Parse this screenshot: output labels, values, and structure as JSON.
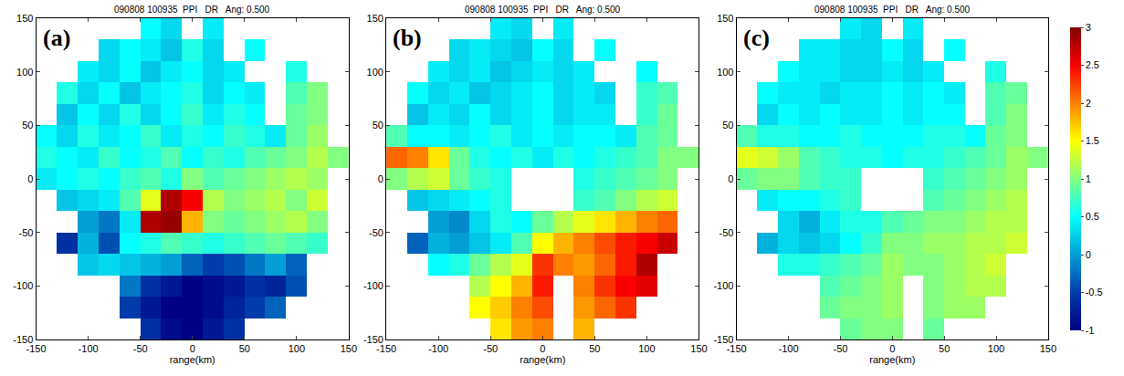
{
  "chart_data": [
    {
      "type": "heatmap",
      "panel_label": "(a)",
      "title": "090808 100935  PPI   DR   Ang: 0.500",
      "x_label": "range(km)",
      "color": "Jet",
      "x": [
        -140,
        -120,
        -100,
        -80,
        -60,
        -40,
        -20,
        0,
        20,
        40,
        60,
        80,
        100,
        120,
        140
      ],
      "y": [
        140,
        120,
        100,
        80,
        60,
        40,
        20,
        0,
        -20,
        -40,
        -60,
        -80,
        -100,
        -120,
        -140
      ],
      "z": [
        [
          null,
          null,
          null,
          null,
          null,
          0.5,
          0.3,
          null,
          0.4,
          null,
          null,
          null,
          null,
          null,
          null
        ],
        [
          null,
          null,
          null,
          0.3,
          0.5,
          0.4,
          0.2,
          0.6,
          0.3,
          null,
          0.5,
          null,
          null,
          null,
          null
        ],
        [
          null,
          null,
          0.4,
          0.3,
          0.5,
          0.2,
          0.4,
          0.5,
          0.3,
          0.4,
          null,
          null,
          0.6,
          null,
          null
        ],
        [
          null,
          0.6,
          0.3,
          0.5,
          0.2,
          0.4,
          0.5,
          0.6,
          0.3,
          0.5,
          0.4,
          null,
          0.8,
          1.0,
          null
        ],
        [
          null,
          0.2,
          0.5,
          0.3,
          0.6,
          0.3,
          0.5,
          0.7,
          0.4,
          0.6,
          0.5,
          null,
          0.9,
          1.0,
          null
        ],
        [
          0.5,
          0.3,
          0.6,
          0.4,
          0.5,
          0.7,
          0.4,
          0.6,
          0.5,
          0.7,
          0.6,
          0.4,
          0.9,
          1.1,
          null
        ],
        [
          0.6,
          0.5,
          0.4,
          0.7,
          0.5,
          0.6,
          0.8,
          0.5,
          0.7,
          0.6,
          0.8,
          0.9,
          1.0,
          1.2,
          1.0
        ],
        [
          0.4,
          0.5,
          0.6,
          0.5,
          0.7,
          0.8,
          0.6,
          1.0,
          0.8,
          0.9,
          1.0,
          1.1,
          1.2,
          1.1,
          null
        ],
        [
          null,
          0.2,
          0.3,
          0.4,
          0.8,
          1.4,
          2.8,
          2.5,
          1.2,
          1.0,
          1.1,
          1.2,
          1.0,
          1.3,
          null
        ],
        [
          null,
          null,
          0.0,
          -0.2,
          0.4,
          2.8,
          2.9,
          1.8,
          1.0,
          0.9,
          1.0,
          1.1,
          1.2,
          1.0,
          null
        ],
        [
          null,
          -0.6,
          0.1,
          -0.4,
          0.5,
          0.6,
          0.8,
          0.7,
          0.6,
          0.7,
          0.8,
          0.9,
          0.8,
          0.7,
          null
        ],
        [
          null,
          null,
          0.2,
          0.3,
          0.2,
          0.1,
          0.0,
          -0.3,
          -0.5,
          -0.4,
          -0.2,
          0.0,
          -0.3,
          null,
          null
        ],
        [
          null,
          null,
          null,
          null,
          -0.2,
          -0.6,
          -0.8,
          -1.0,
          -0.9,
          -0.8,
          -0.6,
          -0.7,
          -0.4,
          null,
          null
        ],
        [
          null,
          null,
          null,
          null,
          -0.5,
          -0.8,
          -1.0,
          -1.0,
          -0.9,
          -0.7,
          -0.5,
          -0.3,
          null,
          null,
          null
        ],
        [
          null,
          null,
          null,
          null,
          null,
          -0.6,
          -0.9,
          -1.0,
          -0.8,
          -0.6,
          null,
          null,
          null,
          null,
          null
        ]
      ],
      "xlim": [
        -150,
        150
      ],
      "ylim": [
        -150,
        150
      ],
      "xticks": [
        -150,
        -100,
        -50,
        0,
        50,
        100,
        150
      ],
      "yticks": [
        -150,
        -100,
        -50,
        0,
        50,
        100,
        150
      ],
      "zlim": [
        -1,
        3
      ]
    },
    {
      "type": "heatmap",
      "panel_label": "(b)",
      "title": "090808 100935  PPI   DR   Ang: 0.500",
      "x_label": "range(km)",
      "color": "Jet",
      "x": [
        -140,
        -120,
        -100,
        -80,
        -60,
        -40,
        -20,
        0,
        20,
        40,
        60,
        80,
        100,
        120,
        140
      ],
      "y": [
        140,
        120,
        100,
        80,
        60,
        40,
        20,
        0,
        -20,
        -40,
        -60,
        -80,
        -100,
        -120,
        -140
      ],
      "z": [
        [
          null,
          null,
          null,
          null,
          null,
          0.4,
          0.3,
          null,
          0.4,
          null,
          null,
          null,
          null,
          null,
          null
        ],
        [
          null,
          null,
          null,
          0.3,
          0.4,
          0.3,
          0.2,
          0.5,
          0.3,
          null,
          0.5,
          null,
          null,
          null,
          null
        ],
        [
          null,
          null,
          0.4,
          0.3,
          0.4,
          0.2,
          0.3,
          0.4,
          0.3,
          0.4,
          null,
          null,
          0.5,
          null,
          null
        ],
        [
          null,
          0.5,
          0.3,
          0.4,
          0.2,
          0.3,
          0.4,
          0.5,
          0.3,
          0.4,
          0.3,
          null,
          0.7,
          0.8,
          null
        ],
        [
          null,
          0.2,
          0.4,
          0.3,
          0.5,
          0.3,
          0.4,
          0.5,
          0.3,
          0.4,
          0.4,
          null,
          0.7,
          0.9,
          null
        ],
        [
          0.8,
          0.5,
          0.5,
          0.4,
          0.5,
          0.6,
          0.4,
          0.5,
          0.4,
          0.5,
          0.5,
          0.4,
          0.8,
          0.9,
          null
        ],
        [
          2.1,
          2.0,
          1.6,
          0.9,
          0.6,
          0.5,
          0.6,
          0.4,
          0.6,
          0.5,
          0.6,
          0.7,
          0.8,
          1.0,
          1.0
        ],
        [
          1.0,
          1.2,
          1.3,
          0.9,
          0.7,
          0.6,
          null,
          null,
          null,
          0.6,
          0.7,
          0.8,
          0.9,
          1.0,
          null
        ],
        [
          null,
          0.2,
          0.3,
          0.4,
          0.5,
          0.6,
          null,
          null,
          null,
          0.7,
          0.8,
          1.0,
          1.2,
          1.3,
          null
        ],
        [
          null,
          null,
          0.0,
          -0.1,
          0.3,
          0.6,
          0.5,
          0.9,
          1.2,
          1.4,
          1.6,
          1.8,
          2.0,
          2.1,
          null
        ],
        [
          null,
          -0.3,
          0.1,
          0.0,
          0.2,
          0.4,
          0.8,
          1.5,
          1.8,
          2.0,
          2.2,
          2.4,
          2.5,
          2.7,
          null
        ],
        [
          null,
          null,
          0.5,
          0.6,
          0.9,
          1.2,
          1.4,
          2.3,
          2.0,
          1.9,
          2.1,
          2.4,
          2.8,
          null,
          null
        ],
        [
          null,
          null,
          null,
          null,
          1.2,
          1.5,
          1.8,
          2.4,
          null,
          2.0,
          2.3,
          2.5,
          2.6,
          null,
          null
        ],
        [
          null,
          null,
          null,
          null,
          1.5,
          1.7,
          2.0,
          2.2,
          null,
          1.9,
          2.1,
          2.3,
          null,
          null,
          null
        ],
        [
          null,
          null,
          null,
          null,
          null,
          1.6,
          1.9,
          2.0,
          null,
          1.8,
          null,
          null,
          null,
          null,
          null
        ]
      ],
      "xlim": [
        -150,
        150
      ],
      "ylim": [
        -150,
        150
      ],
      "xticks": [
        -150,
        -100,
        -50,
        0,
        50,
        100,
        150
      ],
      "yticks": [
        -150,
        -100,
        -50,
        0,
        50,
        100,
        150
      ],
      "zlim": [
        -1,
        3
      ]
    },
    {
      "type": "heatmap",
      "panel_label": "(c)",
      "title": "090808 100935  PPI   DR   Ang: 0.500",
      "x_label": "range(km)",
      "color": "Jet",
      "x": [
        -140,
        -120,
        -100,
        -80,
        -60,
        -40,
        -20,
        0,
        20,
        40,
        60,
        80,
        100,
        120,
        140
      ],
      "y": [
        140,
        120,
        100,
        80,
        60,
        40,
        20,
        0,
        -20,
        -40,
        -60,
        -80,
        -100,
        -120,
        -140
      ],
      "z": [
        [
          null,
          null,
          null,
          null,
          null,
          0.4,
          0.3,
          null,
          0.4,
          null,
          null,
          null,
          null,
          null,
          null
        ],
        [
          null,
          null,
          null,
          0.4,
          0.4,
          0.3,
          0.3,
          0.5,
          0.3,
          null,
          0.5,
          null,
          null,
          null,
          null
        ],
        [
          null,
          null,
          0.5,
          0.4,
          0.4,
          0.3,
          0.3,
          0.4,
          0.3,
          0.4,
          null,
          null,
          0.6,
          null,
          null
        ],
        [
          null,
          0.5,
          0.4,
          0.4,
          0.3,
          0.4,
          0.4,
          0.5,
          0.4,
          0.5,
          0.4,
          null,
          0.8,
          0.9,
          null
        ],
        [
          null,
          0.3,
          0.5,
          0.4,
          0.5,
          0.4,
          0.4,
          0.5,
          0.4,
          0.5,
          0.5,
          null,
          0.8,
          1.0,
          null
        ],
        [
          0.8,
          0.6,
          0.6,
          0.5,
          0.5,
          0.6,
          0.5,
          0.5,
          0.5,
          0.6,
          0.6,
          0.5,
          0.9,
          1.0,
          null
        ],
        [
          1.4,
          1.3,
          1.1,
          0.8,
          0.7,
          0.6,
          0.6,
          0.5,
          0.6,
          0.6,
          0.7,
          0.8,
          0.9,
          1.1,
          1.0
        ],
        [
          0.9,
          1.0,
          1.0,
          0.8,
          0.7,
          0.7,
          null,
          null,
          null,
          0.7,
          0.8,
          0.9,
          1.0,
          1.1,
          null
        ],
        [
          null,
          0.4,
          0.5,
          0.5,
          0.6,
          0.7,
          null,
          null,
          null,
          0.8,
          0.9,
          1.0,
          1.1,
          1.2,
          null
        ],
        [
          null,
          null,
          0.3,
          0.1,
          0.4,
          0.6,
          0.6,
          0.8,
          0.9,
          1.0,
          1.0,
          1.1,
          1.2,
          1.2,
          null
        ],
        [
          null,
          0.1,
          0.3,
          0.2,
          0.3,
          0.5,
          0.7,
          1.0,
          1.0,
          1.1,
          1.1,
          1.2,
          1.2,
          1.3,
          null
        ],
        [
          null,
          null,
          0.6,
          0.6,
          0.7,
          0.8,
          0.9,
          1.1,
          1.0,
          1.0,
          1.1,
          1.2,
          1.3,
          null,
          null
        ],
        [
          null,
          null,
          null,
          null,
          0.8,
          0.9,
          1.0,
          1.1,
          null,
          1.0,
          1.1,
          1.2,
          1.2,
          null,
          null
        ],
        [
          null,
          null,
          null,
          null,
          0.9,
          1.0,
          1.0,
          1.1,
          null,
          1.0,
          1.1,
          1.1,
          null,
          null,
          null
        ],
        [
          null,
          null,
          null,
          null,
          null,
          0.9,
          1.0,
          1.0,
          null,
          0.9,
          null,
          null,
          null,
          null,
          null
        ]
      ],
      "xlim": [
        -150,
        150
      ],
      "ylim": [
        -150,
        150
      ],
      "xticks": [
        -150,
        -100,
        -50,
        0,
        50,
        100,
        150
      ],
      "yticks": [
        -150,
        -100,
        -50,
        0,
        50,
        100,
        150
      ],
      "zlim": [
        -1,
        3
      ],
      "zticks": [
        -1,
        -0.5,
        0,
        0.5,
        1,
        1.5,
        2,
        2.5,
        3
      ]
    }
  ]
}
